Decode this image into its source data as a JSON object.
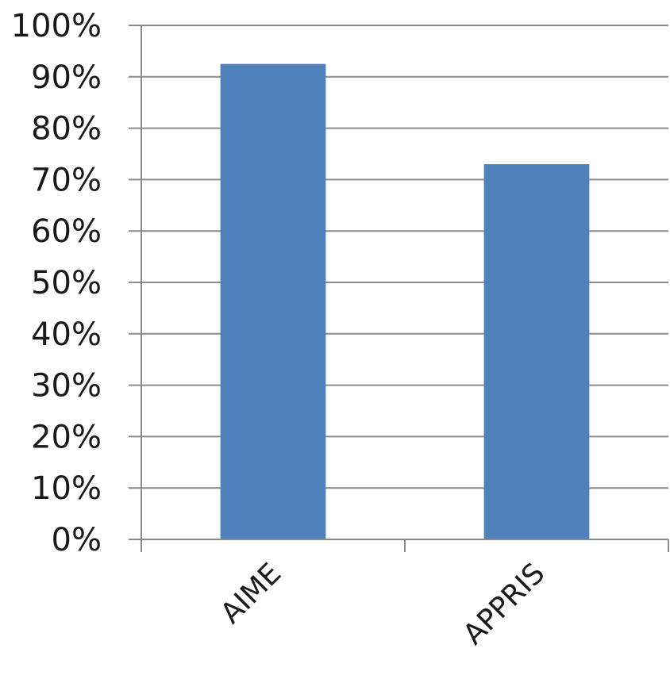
{
  "chart_data": {
    "type": "bar",
    "categories": [
      "AIME",
      "APPRIS"
    ],
    "values": [
      92.5,
      73
    ],
    "ylim": [
      0,
      100
    ],
    "yticks": [
      0,
      10,
      20,
      30,
      40,
      50,
      60,
      70,
      80,
      90,
      100
    ],
    "ytick_labels": [
      "0%",
      "10%",
      "20%",
      "30%",
      "40%",
      "50%",
      "60%",
      "70%",
      "80%",
      "90%",
      "100%"
    ],
    "grid": true,
    "legend": "none",
    "bar_color": "#4f81bd"
  }
}
